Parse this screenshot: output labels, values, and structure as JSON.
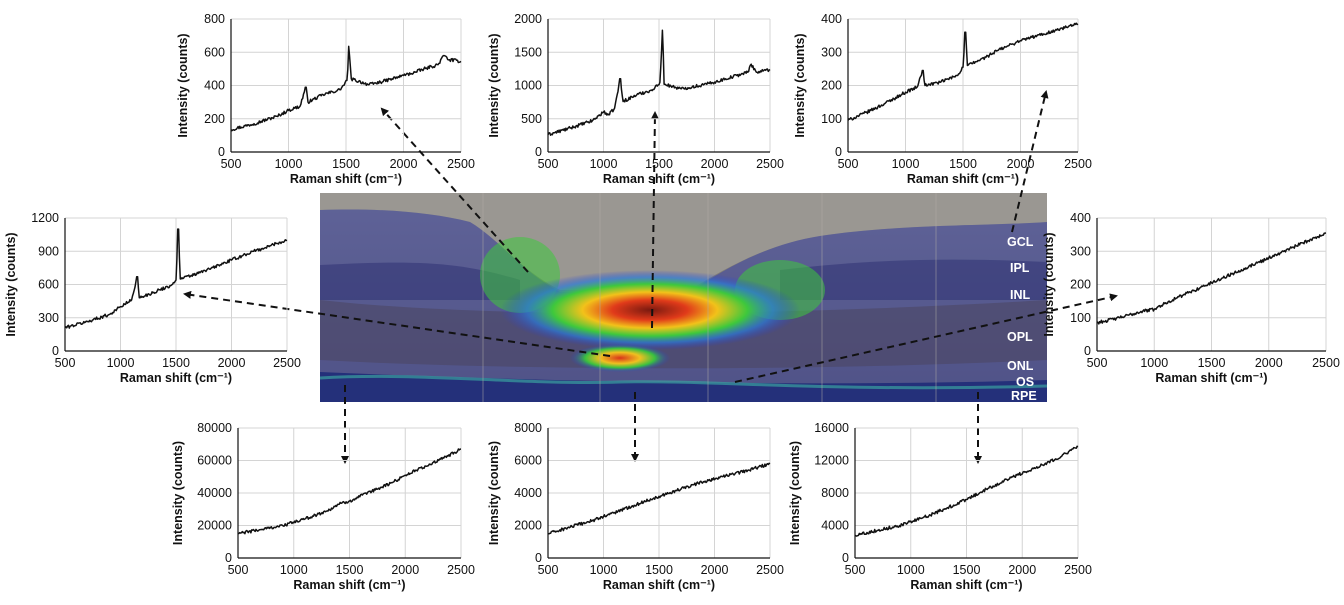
{
  "chart_data": [
    {
      "id": "top-left",
      "type": "line",
      "xlabel": "Raman shift (cm⁻¹)",
      "ylabel": "Intensity (counts)",
      "xlim": [
        500,
        2500
      ],
      "ylim": [
        0,
        800
      ],
      "xticks": [
        500,
        1000,
        1500,
        2000,
        2500
      ],
      "yticks": [
        0,
        200,
        400,
        600,
        800
      ],
      "series": [
        {
          "values": [
            [
              500,
              135
            ],
            [
              700,
              170
            ],
            [
              900,
              215
            ],
            [
              1000,
              250
            ],
            [
              1100,
              275
            ],
            [
              1150,
              390
            ],
            [
              1170,
              300
            ],
            [
              1300,
              345
            ],
            [
              1450,
              375
            ],
            [
              1510,
              430
            ],
            [
              1525,
              635
            ],
            [
              1545,
              440
            ],
            [
              1700,
              405
            ],
            [
              1800,
              420
            ],
            [
              1900,
              440
            ],
            [
              2000,
              460
            ],
            [
              2100,
              480
            ],
            [
              2200,
              505
            ],
            [
              2300,
              525
            ],
            [
              2350,
              580
            ],
            [
              2400,
              555
            ],
            [
              2500,
              545
            ]
          ]
        }
      ]
    },
    {
      "id": "top-middle",
      "type": "line",
      "xlabel": "Raman shift (cm⁻¹)",
      "ylabel": "Intensity (counts)",
      "xlim": [
        500,
        2500
      ],
      "ylim": [
        0,
        2000
      ],
      "xticks": [
        500,
        1000,
        1500,
        2000,
        2500
      ],
      "yticks": [
        0,
        500,
        1000,
        1500,
        2000
      ],
      "series": [
        {
          "values": [
            [
              500,
              260
            ],
            [
              700,
              360
            ],
            [
              900,
              470
            ],
            [
              1000,
              600
            ],
            [
              1050,
              560
            ],
            [
              1100,
              660
            ],
            [
              1150,
              1100
            ],
            [
              1175,
              760
            ],
            [
              1300,
              860
            ],
            [
              1450,
              940
            ],
            [
              1510,
              1050
            ],
            [
              1530,
              1830
            ],
            [
              1550,
              1020
            ],
            [
              1700,
              950
            ],
            [
              1800,
              980
            ],
            [
              1900,
              1010
            ],
            [
              2000,
              1050
            ],
            [
              2100,
              1100
            ],
            [
              2200,
              1150
            ],
            [
              2300,
              1200
            ],
            [
              2330,
              1320
            ],
            [
              2380,
              1200
            ],
            [
              2500,
              1240
            ]
          ]
        }
      ]
    },
    {
      "id": "top-right",
      "type": "line",
      "xlabel": "Raman shift (cm⁻¹)",
      "ylabel": "Intensity (counts)",
      "xlim": [
        500,
        2500
      ],
      "ylim": [
        0,
        400
      ],
      "xticks": [
        500,
        1000,
        1500,
        2000,
        2500
      ],
      "yticks": [
        0,
        100,
        200,
        300,
        400
      ],
      "series": [
        {
          "values": [
            [
              500,
              95
            ],
            [
              700,
              125
            ],
            [
              900,
              160
            ],
            [
              1000,
              180
            ],
            [
              1100,
              195
            ],
            [
              1150,
              245
            ],
            [
              1170,
              200
            ],
            [
              1300,
              210
            ],
            [
              1450,
              230
            ],
            [
              1500,
              255
            ],
            [
              1520,
              360
            ],
            [
              1540,
              260
            ],
            [
              1700,
              285
            ],
            [
              1800,
              305
            ],
            [
              1900,
              320
            ],
            [
              2000,
              335
            ],
            [
              2100,
              345
            ],
            [
              2200,
              355
            ],
            [
              2300,
              365
            ],
            [
              2400,
              375
            ],
            [
              2500,
              385
            ]
          ]
        }
      ]
    },
    {
      "id": "middle-left",
      "type": "line",
      "xlabel": "Raman shift (cm⁻¹)",
      "ylabel": "Intensity (counts)",
      "xlim": [
        500,
        2500
      ],
      "ylim": [
        0,
        1200
      ],
      "xticks": [
        500,
        1000,
        1500,
        2000,
        2500
      ],
      "yticks": [
        0,
        300,
        600,
        900,
        1200
      ],
      "series": [
        {
          "values": [
            [
              500,
              210
            ],
            [
              700,
              265
            ],
            [
              900,
              330
            ],
            [
              1000,
              400
            ],
            [
              1100,
              460
            ],
            [
              1150,
              670
            ],
            [
              1170,
              480
            ],
            [
              1300,
              530
            ],
            [
              1450,
              590
            ],
            [
              1500,
              640
            ],
            [
              1520,
              1100
            ],
            [
              1540,
              650
            ],
            [
              1700,
              700
            ],
            [
              1800,
              740
            ],
            [
              1900,
              780
            ],
            [
              2000,
              820
            ],
            [
              2100,
              860
            ],
            [
              2200,
              900
            ],
            [
              2300,
              930
            ],
            [
              2350,
              950
            ],
            [
              2400,
              970
            ],
            [
              2500,
              1000
            ]
          ]
        }
      ]
    },
    {
      "id": "middle-right",
      "type": "line",
      "xlabel": "Raman shift (cm⁻¹)",
      "ylabel": "Intensity (counts)",
      "xlim": [
        500,
        2500
      ],
      "ylim": [
        0,
        400
      ],
      "xticks": [
        500,
        1000,
        1500,
        2000,
        2500
      ],
      "yticks": [
        0,
        100,
        200,
        300,
        400
      ],
      "series": [
        {
          "values": [
            [
              500,
              85
            ],
            [
              700,
              100
            ],
            [
              900,
              120
            ],
            [
              1000,
              125
            ],
            [
              1100,
              145
            ],
            [
              1200,
              160
            ],
            [
              1300,
              175
            ],
            [
              1400,
              190
            ],
            [
              1500,
              205
            ],
            [
              1600,
              220
            ],
            [
              1700,
              235
            ],
            [
              1800,
              250
            ],
            [
              1900,
              265
            ],
            [
              2000,
              280
            ],
            [
              2100,
              295
            ],
            [
              2200,
              310
            ],
            [
              2300,
              325
            ],
            [
              2400,
              340
            ],
            [
              2500,
              355
            ]
          ]
        }
      ]
    },
    {
      "id": "bottom-left",
      "type": "line",
      "xlabel": "Raman shift (cm⁻¹)",
      "ylabel": "Intensity (counts)",
      "xlim": [
        500,
        2500
      ],
      "ylim": [
        0,
        80000
      ],
      "xticks": [
        500,
        1000,
        1500,
        2000,
        2500
      ],
      "yticks": [
        0,
        20000,
        40000,
        60000,
        80000
      ],
      "series": [
        {
          "values": [
            [
              500,
              15000
            ],
            [
              700,
              17500
            ],
            [
              900,
              20000
            ],
            [
              1100,
              24000
            ],
            [
              1300,
              29000
            ],
            [
              1400,
              33000
            ],
            [
              1500,
              35000
            ],
            [
              1700,
              41000
            ],
            [
              1900,
              47000
            ],
            [
              2000,
              51000
            ],
            [
              2100,
              54000
            ],
            [
              2300,
              60000
            ],
            [
              2500,
              67000
            ]
          ]
        }
      ]
    },
    {
      "id": "bottom-middle",
      "type": "line",
      "xlabel": "Raman shift (cm⁻¹)",
      "ylabel": "Intensity (counts)",
      "xlim": [
        500,
        2500
      ],
      "ylim": [
        0,
        8000
      ],
      "xticks": [
        500,
        1000,
        1500,
        2000,
        2500
      ],
      "yticks": [
        0,
        2000,
        4000,
        6000,
        8000
      ],
      "series": [
        {
          "values": [
            [
              500,
              1500
            ],
            [
              700,
              1900
            ],
            [
              900,
              2300
            ],
            [
              1100,
              2800
            ],
            [
              1300,
              3300
            ],
            [
              1500,
              3800
            ],
            [
              1700,
              4250
            ],
            [
              1900,
              4700
            ],
            [
              2100,
              5050
            ],
            [
              2300,
              5400
            ],
            [
              2500,
              5800
            ]
          ]
        }
      ]
    },
    {
      "id": "bottom-right",
      "type": "line",
      "xlabel": "Raman shift (cm⁻¹)",
      "ylabel": "Intensity (counts)",
      "xlim": [
        500,
        2500
      ],
      "ylim": [
        0,
        16000
      ],
      "xticks": [
        500,
        1000,
        1500,
        2000,
        2500
      ],
      "yticks": [
        0,
        4000,
        8000,
        12000,
        16000
      ],
      "series": [
        {
          "values": [
            [
              500,
              2800
            ],
            [
              700,
              3400
            ],
            [
              900,
              4000
            ],
            [
              1100,
              4900
            ],
            [
              1300,
              6000
            ],
            [
              1500,
              7200
            ],
            [
              1700,
              8600
            ],
            [
              1900,
              9900
            ],
            [
              2100,
              11000
            ],
            [
              2300,
              12200
            ],
            [
              2500,
              13700
            ]
          ]
        }
      ]
    }
  ],
  "image_panel": {
    "layer_labels": [
      "GCL",
      "IPL",
      "INL",
      "OPL",
      "ONL",
      "OS",
      "RPE"
    ]
  },
  "colors": {
    "line": "#111111",
    "axis": "#111111",
    "grid": "#d4d4d4",
    "background": "#ffffff"
  }
}
